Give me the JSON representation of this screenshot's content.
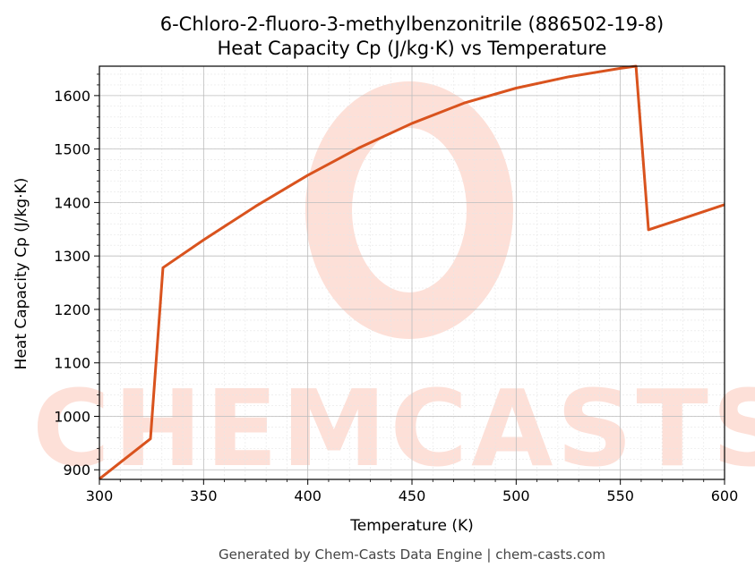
{
  "chart_data": {
    "type": "line",
    "title": "6-Chloro-2-fluoro-3-methylbenzonitrile (886502-19-8)",
    "subtitle": "Heat Capacity Cp (J/kg·K) vs Temperature",
    "xlabel": "Temperature (K)",
    "ylabel": "Heat Capacity Cp (J/kg·K)",
    "xlim": [
      300,
      600
    ],
    "ylim": [
      882,
      1655
    ],
    "xticks": [
      300,
      350,
      400,
      450,
      500,
      550,
      600
    ],
    "yticks": [
      900,
      1000,
      1100,
      1200,
      1300,
      1400,
      1500,
      1600
    ],
    "grid": true,
    "line_color": "#d9531e",
    "series": [
      {
        "x": [
          300,
          324.5,
          330.5,
          350,
          375,
          400,
          425,
          450,
          475,
          500,
          525,
          550,
          557.5,
          563.5,
          580,
          600
        ],
        "values": [
          883,
          958,
          1278,
          1330,
          1393,
          1451,
          1503,
          1548,
          1586,
          1614,
          1635,
          1651,
          1655,
          1349,
          1370,
          1396
        ]
      }
    ]
  },
  "watermark": {
    "text": "CHEMCASTS",
    "color": "#fde0d8"
  },
  "footer": "Generated by Chem-Casts Data Engine | chem-casts.com"
}
